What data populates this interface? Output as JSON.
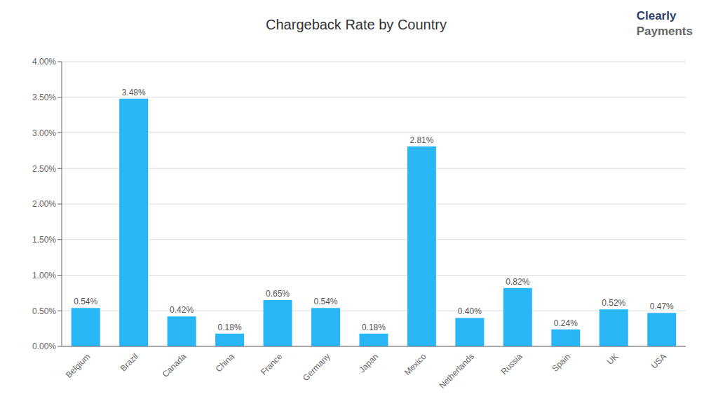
{
  "chart_data": {
    "type": "bar",
    "title": "Chargeback Rate by Country",
    "categories": [
      "Belgium",
      "Brazil",
      "Canada",
      "China",
      "France",
      "Germany",
      "Japan",
      "Mexico",
      "Netherlands",
      "Russia",
      "Spain",
      "UK",
      "USA"
    ],
    "values": [
      0.0054,
      0.0348,
      0.0042,
      0.0018,
      0.0065,
      0.0054,
      0.0018,
      0.0281,
      0.004,
      0.0082,
      0.0024,
      0.0052,
      0.0047
    ],
    "value_labels": [
      "0.54%",
      "3.48%",
      "0.42%",
      "0.18%",
      "0.65%",
      "0.54%",
      "0.18%",
      "2.81%",
      "0.40%",
      "0.82%",
      "0.24%",
      "0.52%",
      "0.47%"
    ],
    "data_labels": true,
    "color": "#29B6F6",
    "ylim": [
      0,
      0.04
    ],
    "yticks": [
      {
        "value": 0.0,
        "label": "0.00%"
      },
      {
        "value": 0.005,
        "label": "0.50%"
      },
      {
        "value": 0.01,
        "label": "1.00%"
      },
      {
        "value": 0.015,
        "label": "1.50%"
      },
      {
        "value": 0.02,
        "label": "2.00%"
      },
      {
        "value": 0.025,
        "label": "2.50%"
      },
      {
        "value": 0.03,
        "label": "3.00%"
      },
      {
        "value": 0.035,
        "label": "3.50%"
      },
      {
        "value": 0.04,
        "label": "4.00%"
      }
    ],
    "grid": true,
    "annotations": [
      {
        "text": "Clearly",
        "color": "#2C3E6B"
      },
      {
        "text": "Payments",
        "color": "#666666"
      }
    ]
  }
}
